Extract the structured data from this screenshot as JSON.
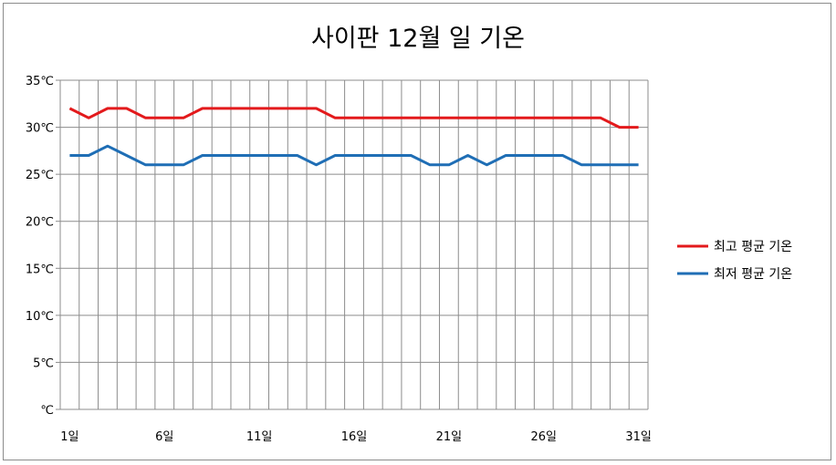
{
  "chart_data": {
    "type": "line",
    "title": "사이판 12월 일 기온",
    "xlabel": "",
    "ylabel": "",
    "x": [
      1,
      2,
      3,
      4,
      5,
      6,
      7,
      8,
      9,
      10,
      11,
      12,
      13,
      14,
      15,
      16,
      17,
      18,
      19,
      20,
      21,
      22,
      23,
      24,
      25,
      26,
      27,
      28,
      29,
      30,
      31
    ],
    "x_tick_values": [
      1,
      6,
      11,
      16,
      21,
      26,
      31
    ],
    "x_tick_labels": [
      "1일",
      "6일",
      "11일",
      "16일",
      "21일",
      "26일",
      "31일"
    ],
    "y_tick_values": [
      0,
      5,
      10,
      15,
      20,
      25,
      30,
      35
    ],
    "y_tick_labels": [
      "℃",
      "5℃",
      "10℃",
      "15℃",
      "20℃",
      "25℃",
      "30℃",
      "35℃"
    ],
    "ylim": [
      0,
      35
    ],
    "grid": true,
    "legend_position": "right",
    "series": [
      {
        "name": "최고 평균 기온",
        "color": "#e31a1c",
        "values": [
          32,
          31,
          32,
          32,
          31,
          31,
          31,
          32,
          32,
          32,
          32,
          32,
          32,
          32,
          31,
          31,
          31,
          31,
          31,
          31,
          31,
          31,
          31,
          31,
          31,
          31,
          31,
          31,
          31,
          30,
          30
        ]
      },
      {
        "name": "최저 평균 기온",
        "color": "#1f6eb5",
        "values": [
          27,
          27,
          28,
          27,
          26,
          26,
          26,
          27,
          27,
          27,
          27,
          27,
          27,
          26,
          27,
          27,
          27,
          27,
          27,
          26,
          26,
          27,
          26,
          27,
          27,
          27,
          27,
          26,
          26,
          26,
          26
        ]
      }
    ]
  }
}
